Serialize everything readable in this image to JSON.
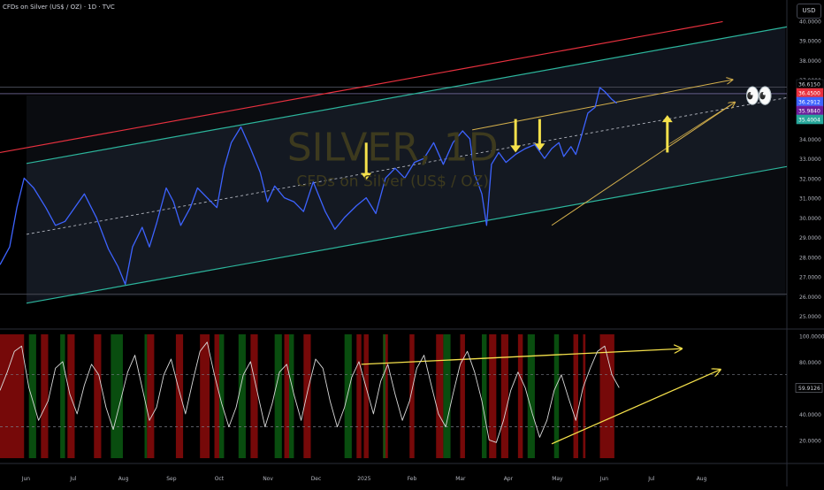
{
  "header": {
    "title": "CFDs on Silver (US$ / OZ) · 1D · TVC"
  },
  "currency_button": "USD",
  "watermark": {
    "symbol": "SILVER, 1D",
    "description": "CFDs on Silver (US$ / OZ)"
  },
  "emoji": "👀",
  "colors": {
    "background": "#000000",
    "price_line": "#3d63ff",
    "channel_mid": "#2cb59c",
    "upper_red": "#e8313f",
    "trendline": "#d4b04c",
    "arrow": "#f5e14b",
    "osc_line": "#d9d9d9",
    "zone_red": "#8b0b0b",
    "zone_green": "#0b5a12"
  },
  "chart_data": [
    {
      "type": "line",
      "panel": "price",
      "y_axis_ticks": [
        "40.0000",
        "39.0000",
        "38.0000",
        "37.0000",
        "36.0000",
        "35.0000",
        "34.0000",
        "33.0000",
        "32.0000",
        "31.0000",
        "30.0000",
        "29.0000",
        "28.0000",
        "27.0000",
        "26.0000",
        "25.0000"
      ],
      "ylim": [
        24.6,
        40.6
      ],
      "x_axis_ticks": [
        "Jun",
        "Jul",
        "Aug",
        "Sep",
        "Oct",
        "Nov",
        "Dec",
        "2025",
        "Feb",
        "Mar",
        "Apr",
        "May",
        "Jun",
        "Jul",
        "Aug"
      ],
      "x_tick_positions": [
        0.6,
        1.6,
        2.6,
        3.6,
        4.6,
        5.6,
        6.6,
        7.6,
        8.6,
        9.6,
        10.6,
        11.6,
        12.6,
        13.6,
        14.6
      ],
      "series": [
        {
          "x": [
            0,
            0.2,
            0.35,
            0.5,
            0.7,
            0.95,
            1.15,
            1.35,
            1.55,
            1.75,
            2.0,
            2.25,
            2.45,
            2.6,
            2.75,
            2.95,
            3.1,
            3.25,
            3.45,
            3.6,
            3.75,
            3.95,
            4.1,
            4.3,
            4.5,
            4.65,
            4.8,
            5.0,
            5.2,
            5.4,
            5.55,
            5.7,
            5.9,
            6.1,
            6.3,
            6.5,
            6.75,
            6.95,
            7.15,
            7.4,
            7.6,
            7.8,
            8.0,
            8.2,
            8.4,
            8.6,
            8.8,
            9.0,
            9.2,
            9.4,
            9.6,
            9.75,
            9.85,
            10.0,
            10.1,
            10.2,
            10.35,
            10.5,
            10.7,
            10.9,
            11.1,
            11.3,
            11.45,
            11.6,
            11.7,
            11.85,
            11.95,
            12.05,
            12.2,
            12.35,
            12.45,
            12.55,
            12.7,
            12.8
          ],
          "y": [
            27.6,
            28.5,
            30.5,
            32.0,
            31.5,
            30.5,
            29.6,
            29.8,
            30.5,
            31.2,
            30.0,
            28.4,
            27.5,
            26.6,
            28.5,
            29.5,
            28.5,
            29.7,
            31.5,
            30.8,
            29.6,
            30.5,
            31.5,
            31.0,
            30.5,
            32.5,
            33.8,
            34.6,
            33.5,
            32.3,
            30.8,
            31.6,
            31.0,
            30.8,
            30.3,
            31.8,
            30.3,
            29.4,
            30.0,
            30.6,
            31.0,
            30.2,
            32.0,
            32.5,
            32.0,
            32.8,
            33.0,
            33.8,
            32.7,
            33.8,
            34.4,
            34.0,
            32.2,
            31.2,
            29.6,
            32.7,
            33.3,
            32.8,
            33.2,
            33.5,
            33.7,
            33.0,
            33.5,
            33.8,
            33.1,
            33.6,
            33.2,
            34.0,
            35.3,
            35.6,
            36.6,
            36.4,
            36.0,
            35.8
          ]
        }
      ],
      "price_labels": [
        "36.6150",
        "36.4500",
        "36.2912",
        "35.9840",
        "35.4004"
      ],
      "annotations": {
        "watermark": "SILVER, 1D",
        "sub_watermark": "CFDs on Silver (US$ / OZ)"
      }
    },
    {
      "type": "line",
      "panel": "oscillator",
      "y_axis_ticks": [
        "100.0000",
        "80.0000",
        "60.0000",
        "40.0000",
        "20.0000"
      ],
      "ylim": [
        6,
        101
      ],
      "current_value_label": "59.9126",
      "reference_levels": [
        70,
        30
      ],
      "series": [
        {
          "x": [
            0,
            0.15,
            0.3,
            0.45,
            0.6,
            0.8,
            1.0,
            1.15,
            1.3,
            1.45,
            1.6,
            1.75,
            1.9,
            2.05,
            2.2,
            2.35,
            2.5,
            2.65,
            2.8,
            2.95,
            3.1,
            3.25,
            3.4,
            3.55,
            3.7,
            3.85,
            4.0,
            4.15,
            4.3,
            4.45,
            4.6,
            4.75,
            4.9,
            5.05,
            5.2,
            5.35,
            5.5,
            5.65,
            5.8,
            5.95,
            6.1,
            6.25,
            6.4,
            6.55,
            6.7,
            6.85,
            7.0,
            7.15,
            7.3,
            7.45,
            7.6,
            7.75,
            7.9,
            8.05,
            8.2,
            8.35,
            8.5,
            8.65,
            8.8,
            8.95,
            9.1,
            9.25,
            9.4,
            9.55,
            9.7,
            9.85,
            10.0,
            10.15,
            10.3,
            10.45,
            10.6,
            10.75,
            10.9,
            11.05,
            11.2,
            11.35,
            11.5,
            11.65,
            11.8,
            11.95,
            12.1,
            12.25,
            12.4,
            12.55,
            12.7,
            12.85
          ],
          "y": [
            58,
            72,
            88,
            92,
            60,
            35,
            50,
            75,
            80,
            55,
            40,
            62,
            78,
            70,
            45,
            28,
            50,
            72,
            85,
            60,
            35,
            45,
            70,
            82,
            60,
            40,
            65,
            88,
            95,
            70,
            48,
            30,
            45,
            70,
            80,
            55,
            30,
            48,
            72,
            78,
            55,
            35,
            60,
            82,
            75,
            50,
            30,
            45,
            68,
            80,
            60,
            40,
            65,
            78,
            55,
            35,
            50,
            75,
            85,
            62,
            40,
            30,
            55,
            78,
            88,
            72,
            50,
            20,
            18,
            35,
            58,
            72,
            60,
            40,
            22,
            35,
            58,
            70,
            52,
            35,
            60,
            75,
            88,
            92,
            70,
            60
          ]
        }
      ],
      "zones": {
        "red": [
          [
            0.0,
            0.5
          ],
          [
            0.85,
            1.0
          ],
          [
            1.4,
            1.55
          ],
          [
            1.95,
            2.1
          ],
          [
            3.05,
            3.2
          ],
          [
            3.65,
            3.8
          ],
          [
            4.15,
            4.35
          ],
          [
            4.45,
            4.55
          ],
          [
            5.2,
            5.35
          ],
          [
            5.9,
            6.0
          ],
          [
            6.3,
            6.45
          ],
          [
            7.4,
            7.5
          ],
          [
            7.55,
            7.65
          ],
          [
            7.95,
            8.05
          ],
          [
            8.5,
            8.6
          ],
          [
            9.05,
            9.2
          ],
          [
            9.55,
            9.65
          ],
          [
            10.15,
            10.3
          ],
          [
            10.4,
            10.55
          ],
          [
            10.75,
            10.85
          ],
          [
            11.9,
            12.0
          ],
          [
            12.1,
            12.15
          ],
          [
            12.45,
            12.75
          ]
        ],
        "green": [
          [
            0.6,
            0.75
          ],
          [
            1.25,
            1.35
          ],
          [
            2.3,
            2.55
          ],
          [
            3.0,
            3.05
          ],
          [
            4.55,
            4.65
          ],
          [
            4.95,
            5.1
          ],
          [
            5.7,
            5.85
          ],
          [
            6.0,
            6.1
          ],
          [
            7.15,
            7.3
          ],
          [
            7.95,
            8.0
          ],
          [
            9.2,
            9.35
          ],
          [
            10.0,
            10.1
          ],
          [
            10.95,
            11.1
          ],
          [
            11.5,
            11.6
          ]
        ]
      }
    }
  ]
}
